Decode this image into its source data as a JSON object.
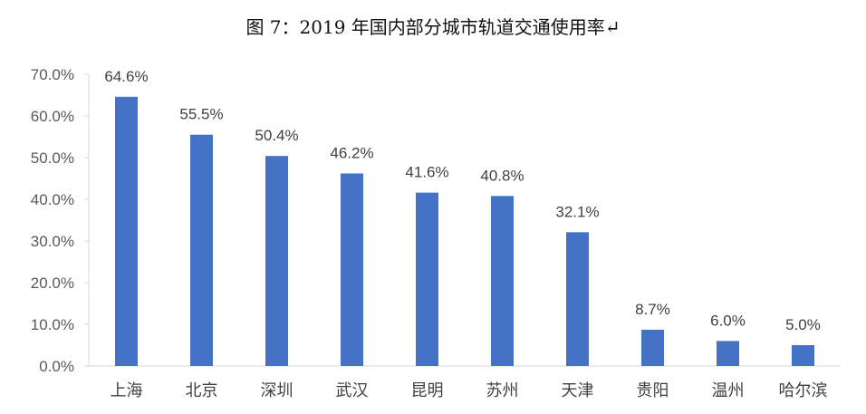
{
  "chart_data": {
    "type": "bar",
    "title": "图 7：2019 年国内部分城市轨道交通使用率↵",
    "xlabel": "",
    "ylabel": "",
    "categories": [
      "上海",
      "北京",
      "深圳",
      "武汉",
      "昆明",
      "苏州",
      "天津",
      "贵阳",
      "温州",
      "哈尔滨"
    ],
    "values": [
      64.6,
      55.5,
      50.4,
      46.2,
      41.6,
      40.8,
      32.1,
      8.7,
      6.0,
      5.0
    ],
    "data_labels": [
      "64.6%",
      "55.5%",
      "50.4%",
      "46.2%",
      "41.6%",
      "40.8%",
      "32.1%",
      "8.7%",
      "6.0%",
      "5.0%"
    ],
    "ylim": [
      0,
      70
    ],
    "yticks": [
      0,
      10,
      20,
      30,
      40,
      50,
      60,
      70
    ],
    "ytick_labels": [
      "0.0%",
      "10.0%",
      "20.0%",
      "30.0%",
      "40.0%",
      "50.0%",
      "60.0%",
      "70.0%"
    ],
    "grid": false,
    "legend": "none",
    "bar_color": "#4472C4"
  }
}
